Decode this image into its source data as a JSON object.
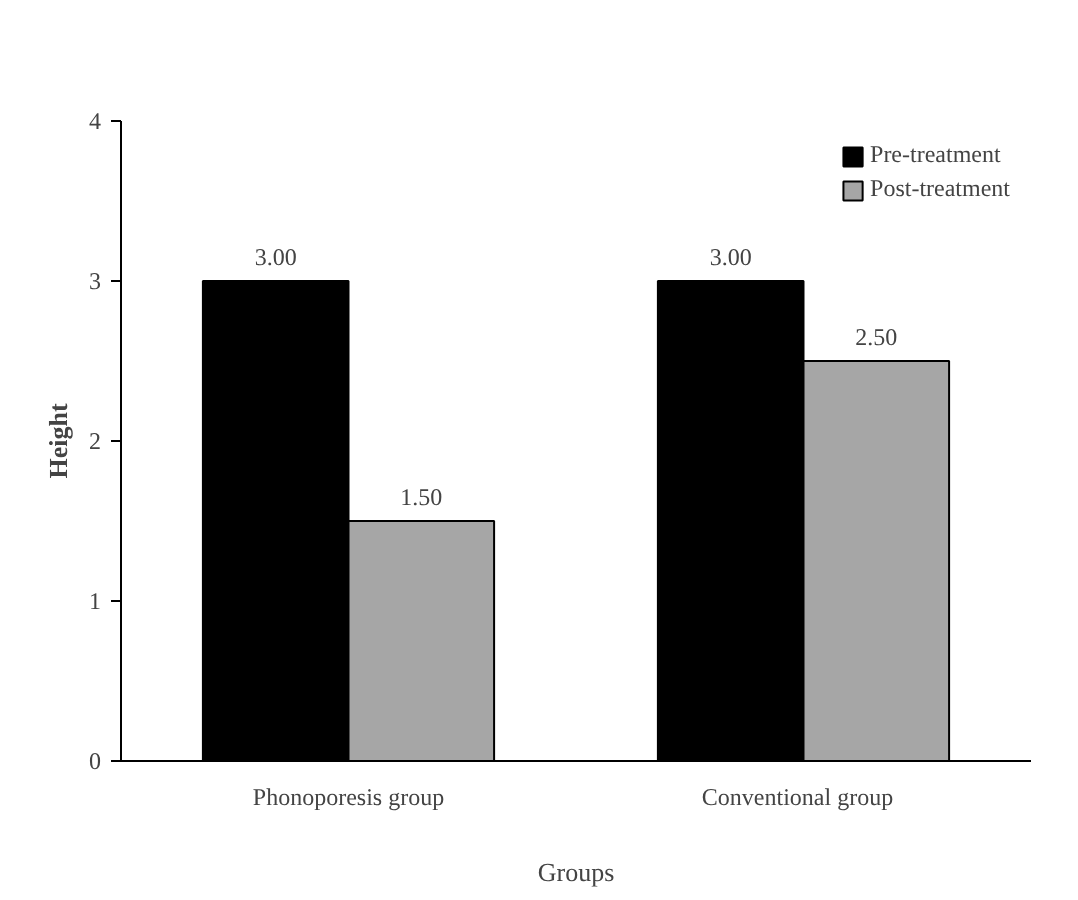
{
  "chart_data": {
    "type": "bar",
    "xlabel": "Groups",
    "ylabel": "Height",
    "categories": [
      "Phonoporesis group",
      "Conventional   group"
    ],
    "series": [
      {
        "name": "Pre-treatment",
        "color": "#000000",
        "values": [
          3.0,
          3.0
        ],
        "value_labels": [
          "3.00",
          "3.00"
        ]
      },
      {
        "name": "Post-treatment",
        "color": "#a6a6a6",
        "values": [
          1.5,
          2.5
        ],
        "value_labels": [
          "1.50",
          "2.50"
        ]
      }
    ],
    "ylim": [
      0,
      4
    ],
    "yticks": [
      0,
      1,
      2,
      3,
      4
    ],
    "grid": false,
    "legend": "top right"
  }
}
